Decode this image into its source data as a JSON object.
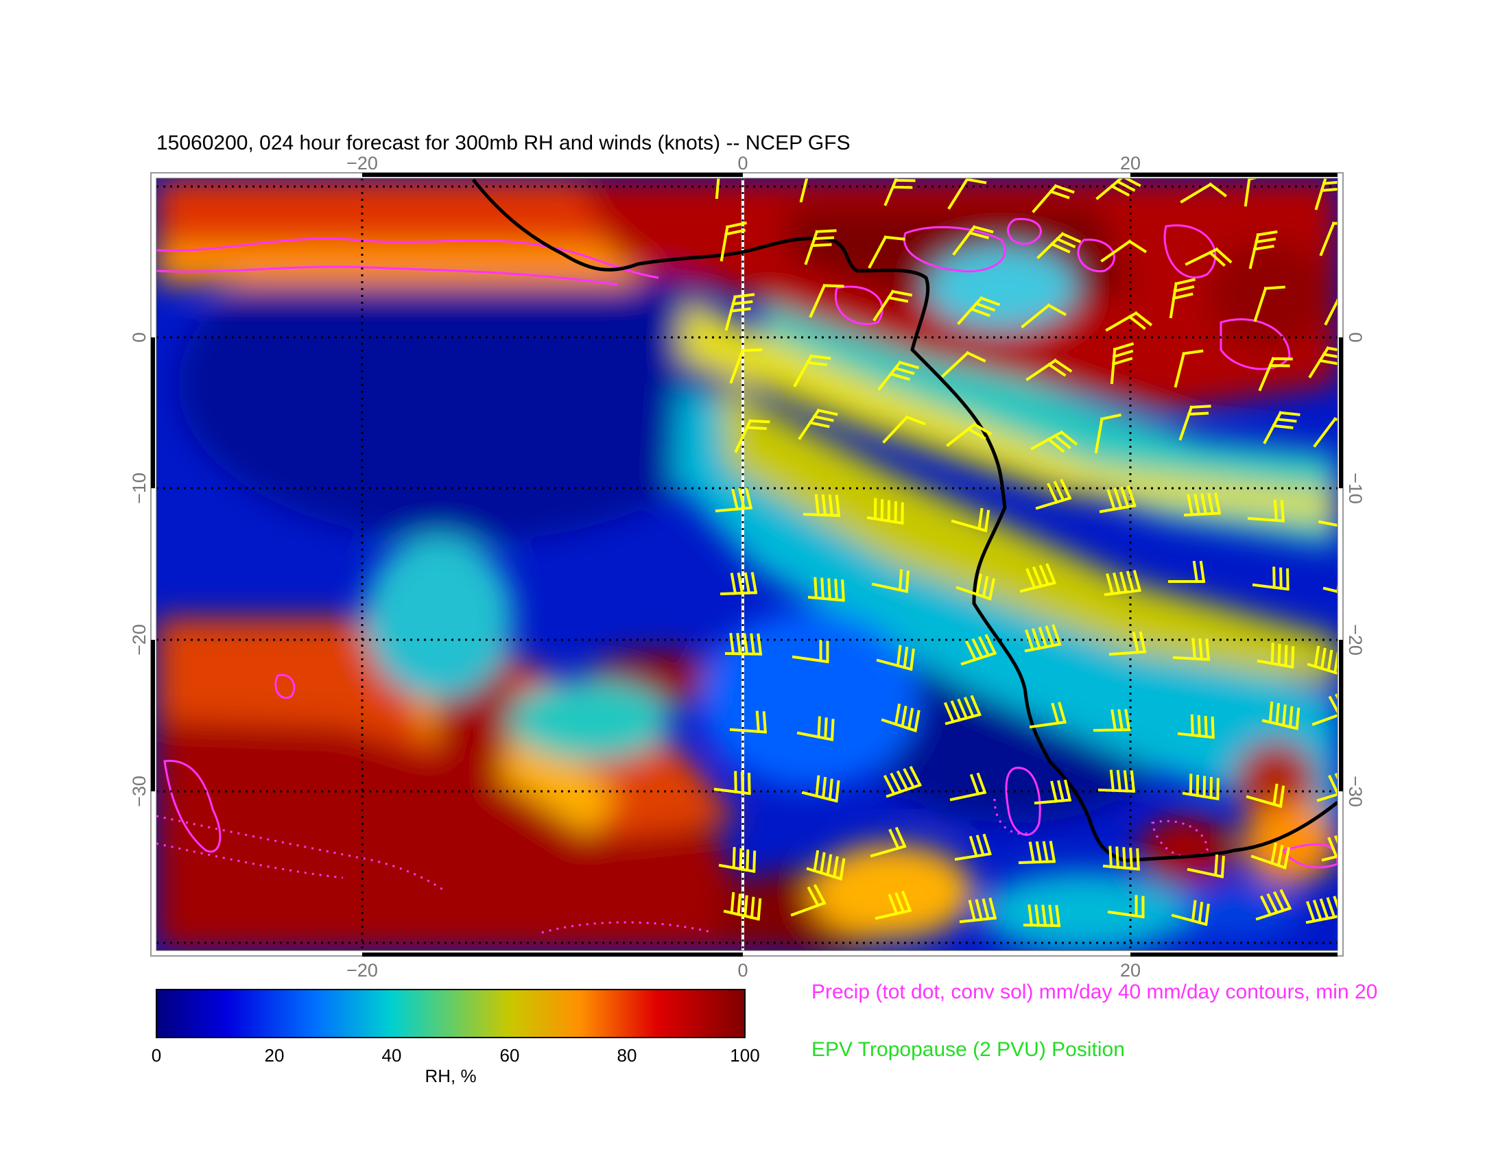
{
  "title": "15060200, 024 hour forecast for 300mb RH and winds (knots) -- NCEP GFS",
  "map": {
    "lon_range": [
      -30,
      30
    ],
    "lat_range": [
      -40,
      11
    ],
    "lon_ticks": [
      "−20",
      "0",
      "20"
    ],
    "lat_ticks": [
      "0",
      "−10",
      "−20",
      "−30"
    ],
    "gridlines": "dotted"
  },
  "colorbar": {
    "label": "RH, %",
    "ticks": [
      "0",
      "20",
      "40",
      "60",
      "80",
      "100"
    ],
    "colors": [
      "#000080",
      "#0000e0",
      "#0070ff",
      "#00d0d0",
      "#c8c800",
      "#ff9000",
      "#e00000",
      "#800000"
    ]
  },
  "legend": {
    "precip": "Precip (tot dot, conv sol) mm/day 40 mm/day contours, min 20",
    "precip_color": "#ff33ff",
    "epv": "EPV Tropopause (2 PVU) Position",
    "epv_color": "#22dd22"
  },
  "colors": {
    "barb": "#ffff00",
    "tropopause_line": "#000000",
    "meridian": "#ffffff"
  }
}
